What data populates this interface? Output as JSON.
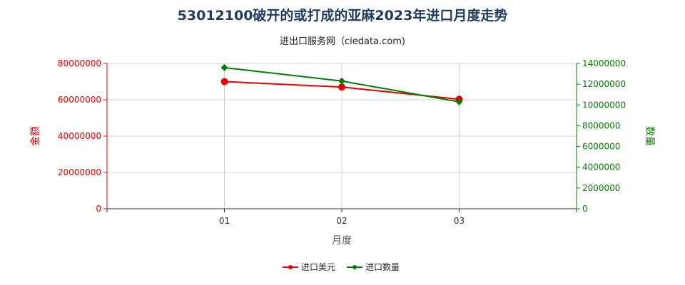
{
  "chart_data": {
    "type": "line",
    "title": "53012100破开的或打成的亚麻2023年进口月度走势",
    "subtitle": "进出口服务网（ciedata.com)",
    "xlabel": "月度",
    "ylabel_left": "金额",
    "ylabel_right": "数量",
    "categories": [
      "01",
      "02",
      "03"
    ],
    "y_left": {
      "min": 0,
      "max": 80000000,
      "ticks": [
        "0",
        "20000000",
        "40000000",
        "60000000",
        "80000000"
      ]
    },
    "y_right": {
      "min": 0,
      "max": 14000000,
      "ticks": [
        "0",
        "2000000",
        "4000000",
        "6000000",
        "8000000",
        "10000000",
        "12000000",
        "14000000"
      ]
    },
    "grid": true,
    "legend_position": "bottom",
    "series": [
      {
        "name": "进口美元",
        "axis": "left",
        "color": "#e60000",
        "marker": "circle",
        "values": [
          70000000,
          67000000,
          60300000
        ]
      },
      {
        "name": "进口数量",
        "axis": "right",
        "color": "#008000",
        "marker": "diamond",
        "values": [
          13600000,
          12300000,
          10300000
        ]
      }
    ]
  }
}
